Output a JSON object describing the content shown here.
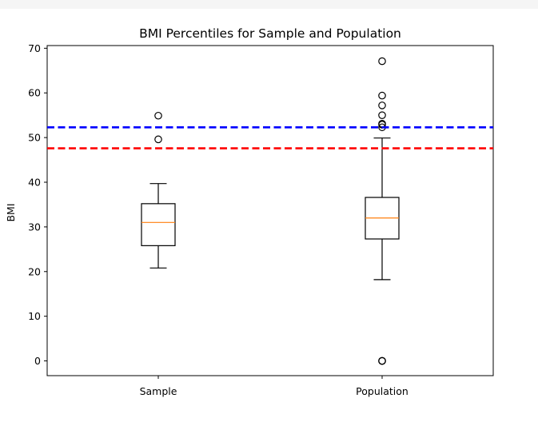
{
  "chart_data": {
    "type": "boxplot",
    "title": "BMI Percentiles for Sample and Population",
    "xlabel": "",
    "ylabel": "BMI",
    "ylim": [
      -3.3,
      70.6
    ],
    "yticks": [
      0,
      10,
      20,
      30,
      40,
      50,
      60,
      70
    ],
    "grid": false,
    "categories": [
      "Sample",
      "Population"
    ],
    "boxes": [
      {
        "category": "Sample",
        "whisker_low": 20.8,
        "q1": 25.8,
        "median": 31.0,
        "q3": 35.2,
        "whisker_high": 39.7,
        "outliers": [
          49.6,
          54.9
        ]
      },
      {
        "category": "Population",
        "whisker_low": 18.2,
        "q1": 27.3,
        "median": 32.0,
        "q3": 36.6,
        "whisker_high": 49.9,
        "outliers": [
          0,
          0,
          0,
          52.3,
          52.9,
          53.1,
          55.0,
          57.2,
          59.4,
          67.1
        ]
      }
    ],
    "reference_lines": [
      {
        "y": 52.3,
        "color": "#0000ff",
        "style": "dashed"
      },
      {
        "y": 47.6,
        "color": "#ff0000",
        "style": "dashed"
      }
    ],
    "colors": {
      "box": "#000000",
      "median": "#ff7f0e"
    }
  }
}
